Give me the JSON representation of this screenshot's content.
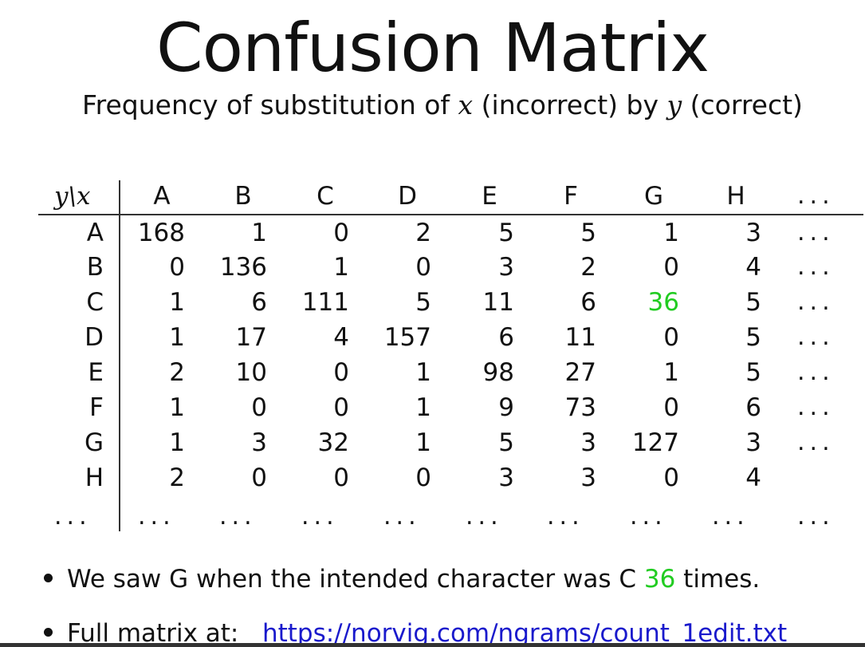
{
  "slide": {
    "title": "Confusion Matrix",
    "subtitle": {
      "prefix": "Frequency of substitution of ",
      "var_x": "x",
      "middle": " (incorrect) by ",
      "var_y": "y",
      "suffix": " (correct)"
    }
  },
  "matrix": {
    "corner_label": "y\\x",
    "ellipsis": "...",
    "column_headers": [
      "A",
      "B",
      "C",
      "D",
      "E",
      "F",
      "G",
      "H"
    ],
    "row_headers": [
      "A",
      "B",
      "C",
      "D",
      "E",
      "F",
      "G",
      "H"
    ],
    "rows": [
      [
        "168",
        "1",
        "0",
        "2",
        "5",
        "5",
        "1",
        "3"
      ],
      [
        "0",
        "136",
        "1",
        "0",
        "3",
        "2",
        "0",
        "4"
      ],
      [
        "1",
        "6",
        "111",
        "5",
        "11",
        "6",
        "36",
        "5"
      ],
      [
        "1",
        "17",
        "4",
        "157",
        "6",
        "11",
        "0",
        "5"
      ],
      [
        "2",
        "10",
        "0",
        "1",
        "98",
        "27",
        "1",
        "5"
      ],
      [
        "1",
        "0",
        "0",
        "1",
        "9",
        "73",
        "0",
        "6"
      ],
      [
        "1",
        "3",
        "32",
        "1",
        "5",
        "3",
        "127",
        "3"
      ],
      [
        "2",
        "0",
        "0",
        "0",
        "3",
        "3",
        "0",
        "4"
      ]
    ],
    "highlight_color": "#22cc22"
  },
  "bullets": {
    "first": {
      "before": "We saw G when the intended character was C ",
      "highlight": "36",
      "after": " times."
    },
    "second": {
      "label": "Full matrix at:",
      "link_text": "https://norvig.com/ngrams/count_1edit.txt"
    }
  }
}
